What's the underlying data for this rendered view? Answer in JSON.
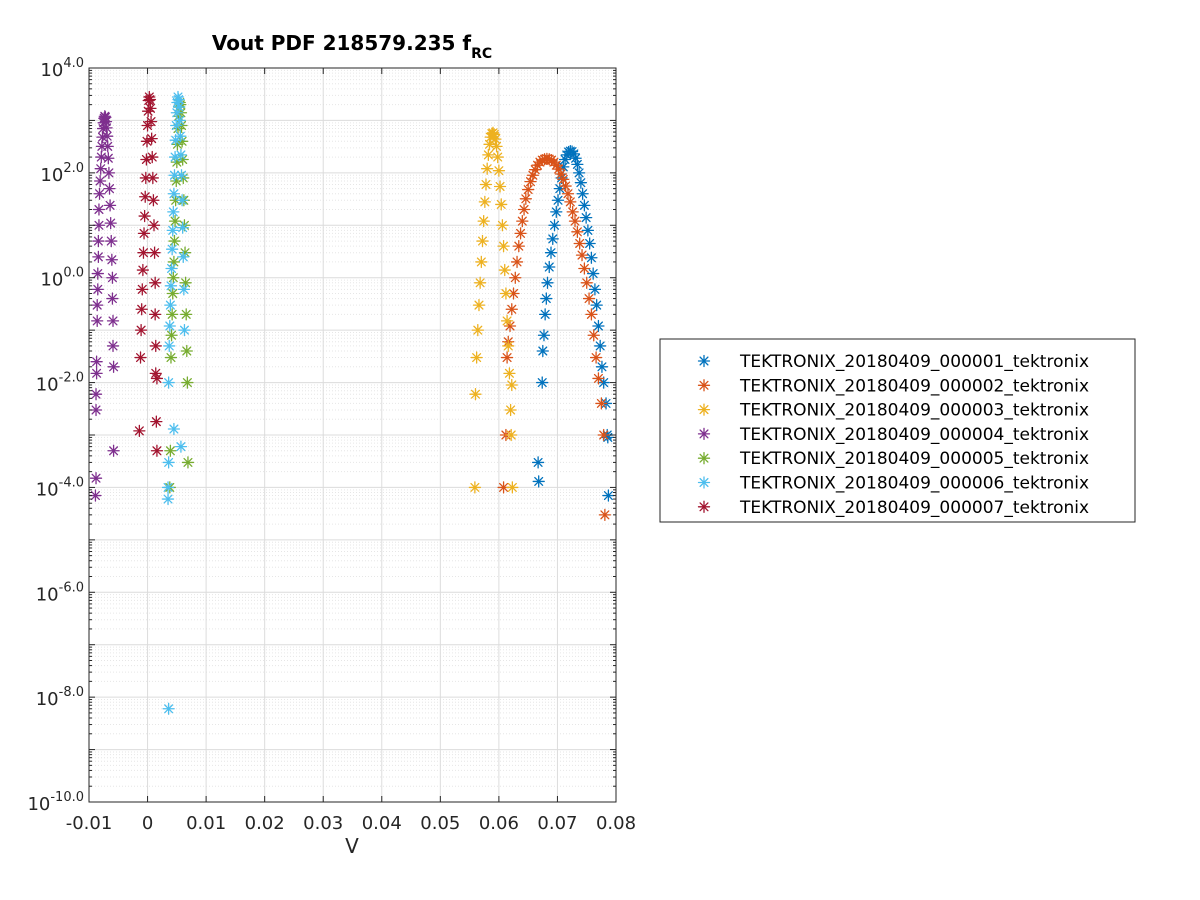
{
  "chart_data": {
    "type": "scatter",
    "title": "Vout PDF 218579.235 f",
    "title_subscript": "RC",
    "xlabel": "V",
    "ylabel": "",
    "x_scale": "linear",
    "y_scale": "log",
    "xlim": [
      -0.01,
      0.08
    ],
    "ylim_exponent": [
      -10,
      4
    ],
    "x_ticks": [
      -0.01,
      0,
      0.01,
      0.02,
      0.03,
      0.04,
      0.05,
      0.06,
      0.07,
      0.08
    ],
    "x_tick_labels": [
      "-0.01",
      "0",
      "0.01",
      "0.02",
      "0.03",
      "0.04",
      "0.05",
      "0.06",
      "0.07",
      "0.08"
    ],
    "y_tick_exponents": [
      -10,
      -8,
      -6,
      -4,
      -2,
      0,
      2,
      4
    ],
    "y_tick_base": "10",
    "y_tick_exponent_labels": [
      "-10.0",
      "-8.0",
      "-6.0",
      "-4.0",
      "-2.0",
      "0.0",
      "2.0",
      "4.0"
    ],
    "grid": true,
    "minor_grid": true,
    "legend_position": "right",
    "marker": "asterisk",
    "series": [
      {
        "name": "TEKTRONIX_20180409_000001_tektronix",
        "color": "#0072BD",
        "points": [
          [
            0.0667,
            0.0003
          ],
          [
            0.0668,
            0.00013
          ],
          [
            0.0674,
            0.01
          ],
          [
            0.0675,
            0.04
          ],
          [
            0.0677,
            0.08
          ],
          [
            0.0679,
            0.2
          ],
          [
            0.0681,
            0.4
          ],
          [
            0.0683,
            0.8
          ],
          [
            0.0686,
            1.6
          ],
          [
            0.0689,
            3
          ],
          [
            0.0692,
            5.5
          ],
          [
            0.0695,
            10
          ],
          [
            0.0698,
            18
          ],
          [
            0.0701,
            30
          ],
          [
            0.0704,
            50
          ],
          [
            0.0707,
            80
          ],
          [
            0.071,
            130
          ],
          [
            0.0713,
            180
          ],
          [
            0.0716,
            220
          ],
          [
            0.0719,
            250
          ],
          [
            0.0722,
            260
          ],
          [
            0.0725,
            255
          ],
          [
            0.0728,
            230
          ],
          [
            0.0731,
            190
          ],
          [
            0.0734,
            145
          ],
          [
            0.0737,
            100
          ],
          [
            0.074,
            65
          ],
          [
            0.0743,
            40
          ],
          [
            0.0746,
            24
          ],
          [
            0.0749,
            14
          ],
          [
            0.0752,
            8
          ],
          [
            0.0755,
            4.5
          ],
          [
            0.0758,
            2.4
          ],
          [
            0.0761,
            1.2
          ],
          [
            0.0764,
            0.6
          ],
          [
            0.0767,
            0.3
          ],
          [
            0.077,
            0.12
          ],
          [
            0.0773,
            0.05
          ],
          [
            0.0776,
            0.02
          ],
          [
            0.0779,
            0.01
          ],
          [
            0.0783,
            0.004
          ],
          [
            0.0785,
            0.001
          ],
          [
            0.0786,
            0.0009
          ],
          [
            0.0787,
            7e-05
          ]
        ]
      },
      {
        "name": "TEKTRONIX_20180409_000002_tektronix",
        "color": "#D95319",
        "points": [
          [
            0.0608,
            0.0001
          ],
          [
            0.0612,
            0.001
          ],
          [
            0.0614,
            0.03
          ],
          [
            0.0616,
            0.06
          ],
          [
            0.0619,
            0.12
          ],
          [
            0.0622,
            0.25
          ],
          [
            0.0625,
            0.5
          ],
          [
            0.0628,
            1
          ],
          [
            0.0631,
            2
          ],
          [
            0.0634,
            4
          ],
          [
            0.0637,
            7
          ],
          [
            0.064,
            12
          ],
          [
            0.0643,
            20
          ],
          [
            0.0646,
            32
          ],
          [
            0.065,
            48
          ],
          [
            0.0654,
            68
          ],
          [
            0.0658,
            90
          ],
          [
            0.0662,
            115
          ],
          [
            0.0666,
            140
          ],
          [
            0.067,
            160
          ],
          [
            0.0674,
            175
          ],
          [
            0.0678,
            182
          ],
          [
            0.0682,
            185
          ],
          [
            0.0686,
            182
          ],
          [
            0.069,
            175
          ],
          [
            0.0694,
            160
          ],
          [
            0.0698,
            140
          ],
          [
            0.0702,
            118
          ],
          [
            0.0706,
            95
          ],
          [
            0.071,
            75
          ],
          [
            0.0714,
            56
          ],
          [
            0.0718,
            40
          ],
          [
            0.0722,
            28
          ],
          [
            0.0726,
            18
          ],
          [
            0.073,
            12
          ],
          [
            0.0734,
            7.5
          ],
          [
            0.0738,
            4.5
          ],
          [
            0.0742,
            2.7
          ],
          [
            0.0746,
            1.5
          ],
          [
            0.075,
            0.8
          ],
          [
            0.0754,
            0.4
          ],
          [
            0.0758,
            0.2
          ],
          [
            0.0762,
            0.08
          ],
          [
            0.0766,
            0.03
          ],
          [
            0.077,
            0.012
          ],
          [
            0.0775,
            0.004
          ],
          [
            0.0779,
            0.001
          ],
          [
            0.0781,
            3e-05
          ]
        ]
      },
      {
        "name": "TEKTRONIX_20180409_000003_tektronix",
        "color": "#EDB120",
        "points": [
          [
            0.0559,
            0.0001
          ],
          [
            0.056,
            0.006
          ],
          [
            0.0562,
            0.03
          ],
          [
            0.0564,
            0.1
          ],
          [
            0.0566,
            0.3
          ],
          [
            0.0568,
            0.8
          ],
          [
            0.057,
            2
          ],
          [
            0.0572,
            5
          ],
          [
            0.0574,
            12
          ],
          [
            0.0576,
            28
          ],
          [
            0.0578,
            60
          ],
          [
            0.058,
            120
          ],
          [
            0.0582,
            220
          ],
          [
            0.0584,
            350
          ],
          [
            0.0586,
            480
          ],
          [
            0.0588,
            560
          ],
          [
            0.059,
            580
          ],
          [
            0.0592,
            540
          ],
          [
            0.0594,
            440
          ],
          [
            0.0596,
            320
          ],
          [
            0.0598,
            200
          ],
          [
            0.06,
            110
          ],
          [
            0.0602,
            55
          ],
          [
            0.0604,
            25
          ],
          [
            0.0606,
            10
          ],
          [
            0.0608,
            4
          ],
          [
            0.061,
            1.4
          ],
          [
            0.0612,
            0.5
          ],
          [
            0.0614,
            0.15
          ],
          [
            0.0616,
            0.05
          ],
          [
            0.0618,
            0.015
          ],
          [
            0.062,
            0.003
          ],
          [
            0.0621,
            0.001
          ],
          [
            0.0622,
            0.009
          ],
          [
            0.0623,
            0.0001
          ]
        ]
      },
      {
        "name": "TEKTRONIX_20180409_000004_tektronix",
        "color": "#7E2F8E",
        "points": [
          [
            -0.0088,
            0.00015
          ],
          [
            -0.0089,
            7e-05
          ],
          [
            -0.0088,
            0.003
          ],
          [
            -0.0088,
            0.006
          ],
          [
            -0.0087,
            0.015
          ],
          [
            -0.0087,
            0.025
          ],
          [
            -0.0086,
            0.15
          ],
          [
            -0.0086,
            0.3
          ],
          [
            -0.0085,
            0.6
          ],
          [
            -0.0085,
            1.2
          ],
          [
            -0.0084,
            2.5
          ],
          [
            -0.0084,
            5
          ],
          [
            -0.0083,
            10
          ],
          [
            -0.0083,
            20
          ],
          [
            -0.0082,
            40
          ],
          [
            -0.0081,
            70
          ],
          [
            -0.008,
            120
          ],
          [
            -0.0079,
            200
          ],
          [
            -0.0078,
            320
          ],
          [
            -0.0077,
            480
          ],
          [
            -0.0076,
            700
          ],
          [
            -0.0075,
            900
          ],
          [
            -0.0074,
            1100
          ],
          [
            -0.0073,
            1200
          ],
          [
            -0.0072,
            1150
          ],
          [
            -0.0071,
            950
          ],
          [
            -0.007,
            720
          ],
          [
            -0.0069,
            500
          ],
          [
            -0.0068,
            320
          ],
          [
            -0.0067,
            190
          ],
          [
            -0.0066,
            100
          ],
          [
            -0.0065,
            50
          ],
          [
            -0.0064,
            24
          ],
          [
            -0.0063,
            11
          ],
          [
            -0.0062,
            5
          ],
          [
            -0.0061,
            2.2
          ],
          [
            -0.006,
            1
          ],
          [
            -0.006,
            0.4
          ],
          [
            -0.0059,
            0.15
          ],
          [
            -0.0059,
            0.05
          ],
          [
            -0.0058,
            0.02
          ],
          [
            -0.0058,
            0.0005
          ]
        ]
      },
      {
        "name": "TEKTRONIX_20180409_000005_tektronix",
        "color": "#77AC30",
        "points": [
          [
            0.0038,
            0.0001
          ],
          [
            0.0039,
            0.0005
          ],
          [
            0.004,
            0.03
          ],
          [
            0.0041,
            0.08
          ],
          [
            0.0042,
            0.2
          ],
          [
            0.0043,
            0.5
          ],
          [
            0.0044,
            1
          ],
          [
            0.0045,
            2
          ],
          [
            0.0046,
            5
          ],
          [
            0.0047,
            12
          ],
          [
            0.0048,
            30
          ],
          [
            0.0049,
            70
          ],
          [
            0.005,
            160
          ],
          [
            0.0051,
            350
          ],
          [
            0.0052,
            700
          ],
          [
            0.0053,
            1200
          ],
          [
            0.0054,
            1800
          ],
          [
            0.0055,
            2200
          ],
          [
            0.0056,
            2000
          ],
          [
            0.0057,
            1400
          ],
          [
            0.0058,
            800
          ],
          [
            0.0059,
            400
          ],
          [
            0.006,
            180
          ],
          [
            0.0061,
            80
          ],
          [
            0.0062,
            30
          ],
          [
            0.0063,
            10
          ],
          [
            0.0064,
            3
          ],
          [
            0.0065,
            0.8
          ],
          [
            0.0066,
            0.2
          ],
          [
            0.0067,
            0.04
          ],
          [
            0.0068,
            0.01
          ],
          [
            0.0069,
            0.0003
          ]
        ]
      },
      {
        "name": "TEKTRONIX_20180409_000006_tektronix",
        "color": "#4DBEEE",
        "points": [
          [
            0.0036,
            6e-09
          ],
          [
            0.0035,
            6e-05
          ],
          [
            0.0035,
            0.0001
          ],
          [
            0.0036,
            0.0003
          ],
          [
            0.0036,
            0.01
          ],
          [
            0.0037,
            0.05
          ],
          [
            0.0038,
            0.12
          ],
          [
            0.0039,
            0.3
          ],
          [
            0.004,
            0.7
          ],
          [
            0.0041,
            1.5
          ],
          [
            0.0042,
            3.5
          ],
          [
            0.0043,
            8
          ],
          [
            0.0044,
            18
          ],
          [
            0.0045,
            40
          ],
          [
            0.0046,
            90
          ],
          [
            0.0047,
            200
          ],
          [
            0.0048,
            420
          ],
          [
            0.0049,
            800
          ],
          [
            0.005,
            1400
          ],
          [
            0.0051,
            2200
          ],
          [
            0.0052,
            2800
          ],
          [
            0.0053,
            2500
          ],
          [
            0.0054,
            1800
          ],
          [
            0.0055,
            1000
          ],
          [
            0.0056,
            500
          ],
          [
            0.0057,
            220
          ],
          [
            0.0058,
            90
          ],
          [
            0.0059,
            30
          ],
          [
            0.006,
            9
          ],
          [
            0.0061,
            2.5
          ],
          [
            0.0062,
            0.6
          ],
          [
            0.0063,
            0.1
          ],
          [
            0.0057,
            0.0006
          ],
          [
            0.0045,
            0.0013
          ]
        ]
      },
      {
        "name": "TEKTRONIX_20180409_000007_tektronix",
        "color": "#A2142F",
        "points": [
          [
            -0.0014,
            0.0012
          ],
          [
            -0.0012,
            0.03
          ],
          [
            -0.0011,
            0.1
          ],
          [
            -0.001,
            0.25
          ],
          [
            -0.0009,
            0.6
          ],
          [
            -0.0008,
            1.4
          ],
          [
            -0.0007,
            3
          ],
          [
            -0.0006,
            7
          ],
          [
            -0.0005,
            15
          ],
          [
            -0.0004,
            35
          ],
          [
            -0.0003,
            80
          ],
          [
            -0.0002,
            180
          ],
          [
            -0.0001,
            400
          ],
          [
            0.0,
            800
          ],
          [
            0.0001,
            1500
          ],
          [
            0.0002,
            2400
          ],
          [
            0.0003,
            2800
          ],
          [
            0.0004,
            2500
          ],
          [
            0.0005,
            1700
          ],
          [
            0.0006,
            950
          ],
          [
            0.0007,
            450
          ],
          [
            0.0008,
            200
          ],
          [
            0.0009,
            80
          ],
          [
            0.001,
            30
          ],
          [
            0.0011,
            10
          ],
          [
            0.0012,
            3
          ],
          [
            0.0013,
            0.8
          ],
          [
            0.0013,
            0.2
          ],
          [
            0.0014,
            0.05
          ],
          [
            0.0014,
            0.015
          ],
          [
            0.0015,
            0.0018
          ],
          [
            0.0016,
            0.0005
          ],
          [
            0.0016,
            0.012
          ]
        ]
      }
    ]
  }
}
